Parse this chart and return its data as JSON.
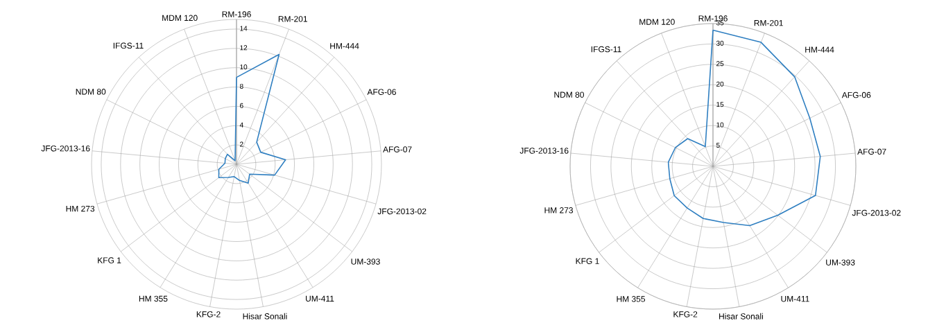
{
  "chart_data": [
    {
      "type": "radar",
      "categories": [
        "RM-196",
        "RM-201",
        "HM-444",
        "AFG-06",
        "AFG-07",
        "JFG-2013-02",
        "UM-393",
        "UM-411",
        "Hisar Sonali",
        "KFG-2",
        "HM 355",
        "KFG 1",
        "HM 273",
        "JFG-2013-16",
        "NDM 80",
        "IFGS-11",
        "MDM 120"
      ],
      "series": [
        {
          "color": "#2f7fc1",
          "values": [
            9.0,
            12.2,
            3.1,
            2.8,
            5.1,
            4.1,
            1.7,
            2.3,
            1.7,
            1.3,
            1.6,
            2.3,
            1.9,
            1.2,
            1.3,
            1.4,
            0.4
          ]
        }
      ],
      "ylim": [
        0,
        15
      ],
      "yticks": [
        2,
        4,
        6,
        8,
        10,
        12,
        14
      ],
      "grid": true
    },
    {
      "type": "radar",
      "categories": [
        "RM-196",
        "RM-201",
        "HM-444",
        "AFG-06",
        "AFG-07",
        "JFG-2013-02",
        "UM-393",
        "UM-411",
        "Hisar Sonali",
        "KFG-2",
        "HM 355",
        "KFG 1",
        "HM 273",
        "JFG-2013-16",
        "NDM 80",
        "IFGS-11",
        "MDM 120"
      ],
      "series": [
        {
          "color": "#2f7fc1",
          "values": [
            33.4,
            32.6,
            29.7,
            26.5,
            26.4,
            26.1,
            19.9,
            17.1,
            14.0,
            13.0,
            12.0,
            11.9,
            11.0,
            11.0,
            10.3,
            9.2,
            5.2
          ]
        }
      ],
      "ylim": [
        0,
        35
      ],
      "yticks": [
        5,
        10,
        15,
        20,
        25,
        30,
        35
      ],
      "grid": true
    }
  ]
}
